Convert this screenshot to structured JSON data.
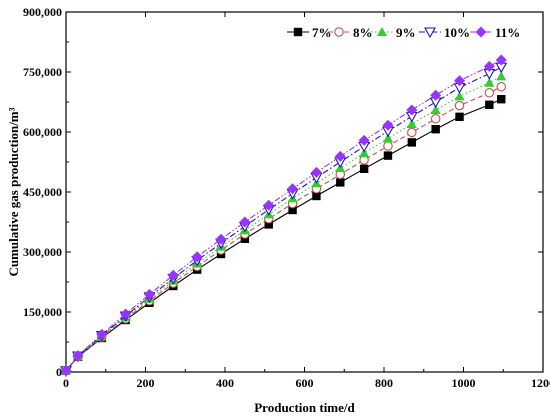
{
  "chart_data": {
    "type": "line",
    "title": "",
    "xlabel": "Production time/d",
    "ylabel": "Cumulative gas production/m³",
    "xlim": [
      0,
      1200
    ],
    "ylim": [
      0,
      900000
    ],
    "x_ticks": [
      0,
      200,
      400,
      600,
      800,
      1000,
      1200
    ],
    "x_tick_labels": [
      "0",
      "200",
      "400",
      "600",
      "800",
      "1000",
      "1200"
    ],
    "y_ticks": [
      0,
      150000,
      300000,
      450000,
      600000,
      750000,
      900000
    ],
    "y_tick_labels": [
      "0",
      "150,000",
      "300,000",
      "450,000",
      "600,000",
      "750,000",
      "900,000"
    ],
    "grid": false,
    "legend_position": "top-right",
    "x": [
      0,
      30,
      90,
      150,
      210,
      270,
      330,
      390,
      450,
      510,
      570,
      630,
      690,
      750,
      810,
      870,
      930,
      990,
      1065,
      1095
    ],
    "series": [
      {
        "name": "7%",
        "color": "#000000",
        "marker": "square",
        "line_style": "solid",
        "values": [
          3000,
          38000,
          85000,
          130000,
          173000,
          215000,
          256000,
          295000,
          333000,
          369000,
          405000,
          440000,
          474000,
          508000,
          541000,
          574000,
          607000,
          638000,
          668000,
          682000
        ]
      },
      {
        "name": "8%",
        "color": "#c0504d",
        "marker": "circle-open",
        "line_style": "dashed",
        "values": [
          3000,
          38000,
          87000,
          133000,
          178000,
          222000,
          264000,
          305000,
          345000,
          383000,
          421000,
          458000,
          494000,
          530000,
          565000,
          599000,
          633000,
          666000,
          698000,
          713000
        ]
      },
      {
        "name": "9%",
        "color": "#33cc33",
        "marker": "triangle-up",
        "line_style": "dotted",
        "values": [
          3000,
          39000,
          89000,
          137000,
          183000,
          228000,
          271000,
          313000,
          354000,
          394000,
          434000,
          472000,
          510000,
          547000,
          584000,
          620000,
          655000,
          689000,
          723000,
          739000
        ]
      },
      {
        "name": "10%",
        "color": "#1a1aa6",
        "marker": "triangle-down-open",
        "line_style": "dashdot",
        "values": [
          3000,
          40000,
          91000,
          140000,
          188000,
          234000,
          279000,
          322000,
          364000,
          406000,
          446000,
          486000,
          525000,
          564000,
          602000,
          639000,
          675000,
          711000,
          746000,
          762000
        ]
      },
      {
        "name": "11%",
        "color": "#9933ff",
        "marker": "diamond",
        "line_style": "dashdotdot",
        "values": [
          3000,
          41000,
          94000,
          145000,
          194000,
          242000,
          288000,
          332000,
          375000,
          417000,
          458000,
          499000,
          539000,
          579000,
          617000,
          655000,
          692000,
          728000,
          764000,
          780000
        ]
      }
    ]
  }
}
